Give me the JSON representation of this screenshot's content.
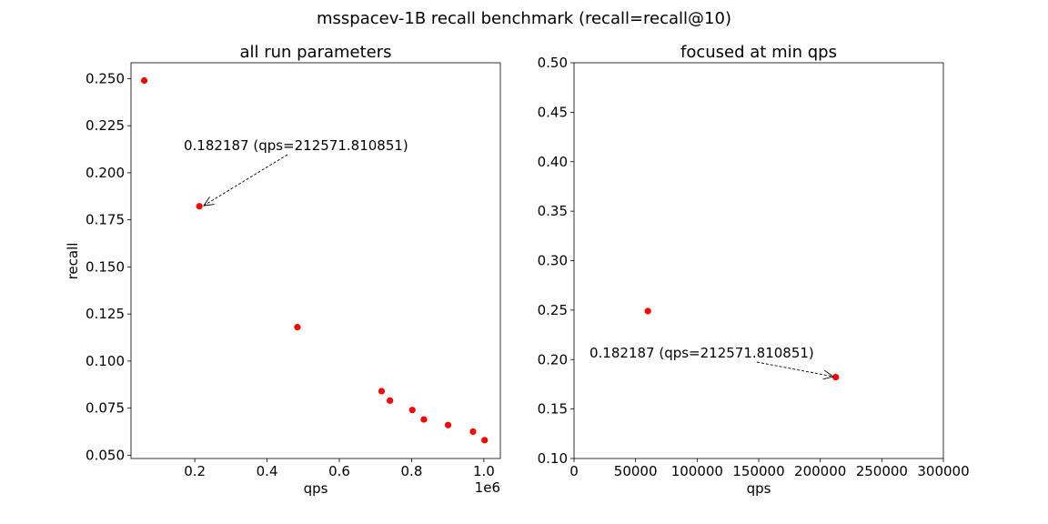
{
  "suptitle": "msspacev-1B recall benchmark (recall=recall@10)",
  "chart_data": [
    {
      "type": "scatter",
      "title": "all run parameters",
      "xlabel": "qps",
      "ylabel": "recall",
      "x_offset_label": "1e6",
      "xticks": [
        0.2,
        0.4,
        0.6,
        0.8,
        1.0
      ],
      "xtick_labels": [
        "0.2",
        "0.4",
        "0.6",
        "0.8",
        "1.0"
      ],
      "yticks": [
        0.05,
        0.075,
        0.1,
        0.125,
        0.15,
        0.175,
        0.2,
        0.225,
        0.25
      ],
      "ytick_labels": [
        "0.050",
        "0.075",
        "0.100",
        "0.125",
        "0.150",
        "0.175",
        "0.200",
        "0.225",
        "0.250"
      ],
      "marker_color": "#ff0000",
      "points": [
        {
          "x": 0.06,
          "y": 0.249
        },
        {
          "x": 0.2126,
          "y": 0.1822
        },
        {
          "x": 0.484,
          "y": 0.118
        },
        {
          "x": 0.717,
          "y": 0.084
        },
        {
          "x": 0.74,
          "y": 0.079
        },
        {
          "x": 0.802,
          "y": 0.074
        },
        {
          "x": 0.834,
          "y": 0.069
        },
        {
          "x": 0.901,
          "y": 0.066
        },
        {
          "x": 0.97,
          "y": 0.0625
        },
        {
          "x": 1.002,
          "y": 0.058
        }
      ],
      "annotation": {
        "text": "0.182187 (qps=212571.810851)",
        "x": 0.2126,
        "y": 0.1822
      }
    },
    {
      "type": "scatter",
      "title": "focused at min qps",
      "xlabel": "qps",
      "ylabel": "",
      "xlim": [
        0,
        300000
      ],
      "ylim": [
        0.1,
        0.5
      ],
      "xticks": [
        0,
        50000,
        100000,
        150000,
        200000,
        250000,
        300000
      ],
      "xtick_labels": [
        "0",
        "50000",
        "100000",
        "150000",
        "200000",
        "250000",
        "300000"
      ],
      "yticks": [
        0.1,
        0.15,
        0.2,
        0.25,
        0.3,
        0.35,
        0.4,
        0.45,
        0.5
      ],
      "ytick_labels": [
        "0.10",
        "0.15",
        "0.20",
        "0.25",
        "0.30",
        "0.35",
        "0.40",
        "0.45",
        "0.50"
      ],
      "marker_color": "#ff0000",
      "points": [
        {
          "x": 60000,
          "y": 0.249
        },
        {
          "x": 212571.81,
          "y": 0.1822
        }
      ],
      "annotation": {
        "text": "0.182187 (qps=212571.810851)",
        "x": 212571.81,
        "y": 0.1822
      }
    }
  ]
}
